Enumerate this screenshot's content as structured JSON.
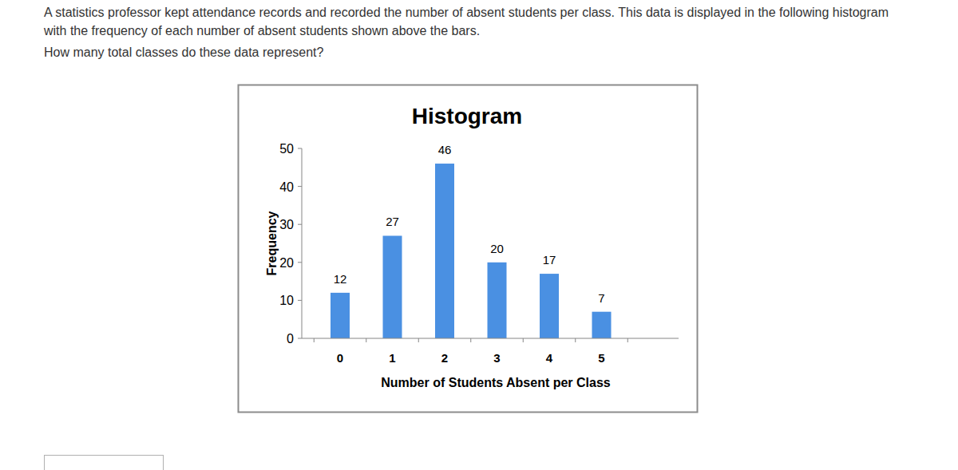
{
  "question": {
    "text": "A statistics professor kept attendance records and recorded the number of absent students per class. This data is displayed in the following histogram with the frequency of each number of absent students shown above the bars.",
    "prompt": "How many total classes do these data represent?"
  },
  "chart_data": {
    "type": "bar",
    "title": "Histogram",
    "x_label": "Number of Students Absent per Class",
    "y_label": "Frequency",
    "categories": [
      "0",
      "1",
      "2",
      "3",
      "4",
      "5"
    ],
    "values": [
      12,
      27,
      46,
      20,
      17,
      7
    ],
    "color": "#4a90e2",
    "ylim": [
      0,
      50
    ],
    "yticks": [
      0,
      10,
      20,
      30,
      40,
      50
    ],
    "grid": false,
    "data_labels": true
  }
}
